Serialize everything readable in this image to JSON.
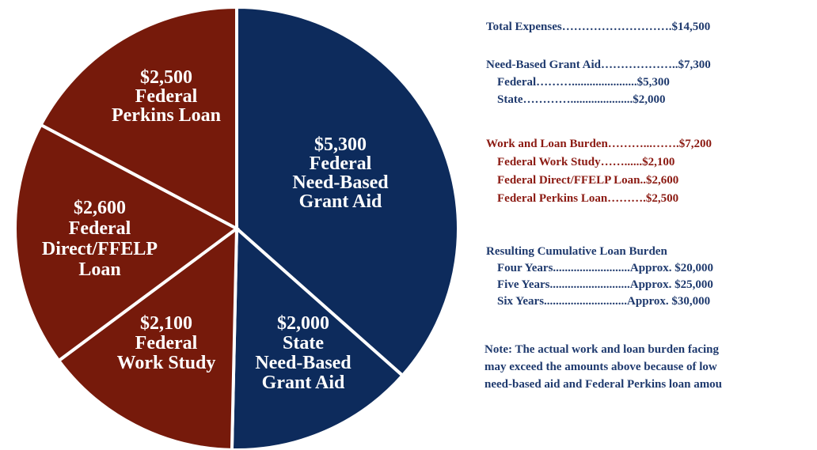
{
  "chart_data": {
    "type": "pie",
    "categories": [
      [
        "Federal",
        "Need-Based",
        "Grant Aid"
      ],
      [
        "State",
        "Need-Based",
        "Grant Aid"
      ],
      [
        "Federal",
        "Work Study"
      ],
      [
        "Federal",
        "Direct/FFELP",
        "Loan"
      ],
      [
        "Federal",
        "Perkins Loan"
      ]
    ],
    "values": [
      5300,
      2000,
      2100,
      2600,
      2500
    ],
    "value_labels": [
      "$5,300",
      "$2,000",
      "$2,100",
      "$2,600",
      "$2,500"
    ],
    "colors": [
      "#0d2b5c",
      "#0d2b5c",
      "#761a0b",
      "#761a0b",
      "#761a0b"
    ]
  },
  "summary": [
    {
      "color": "#1f3a6e",
      "lines": [
        "Total Expenses……………………….$14,500"
      ]
    },
    {
      "color": "#1f3a6e",
      "lines": [
        "Need-Based Grant Aid………………..$7,300",
        "Federal………......................$5,300",
        "State………….....................$2,000"
      ]
    },
    {
      "color": "#8b1a12",
      "lines": [
        "Work and Loan Burden………...…….$7,200",
        "Federal Work Study……......$2,100",
        "Federal Direct/FFELP Loan..$2,600",
        "Federal Perkins Loan……….$2,500"
      ]
    },
    {
      "color": "#1f3a6e",
      "lines": [
        "Resulting Cumulative Loan Burden",
        "Four Years..........................Approx. $20,000",
        "Five Years...........................Approx. $25,000",
        "Six Years............................Approx. $30,000"
      ]
    }
  ],
  "note": {
    "color": "#1f3a6e",
    "lines": [
      "Note: The actual work and loan burden facing",
      "may exceed the amounts above because of low",
      "need-based aid and Federal Perkins loan amou"
    ]
  }
}
